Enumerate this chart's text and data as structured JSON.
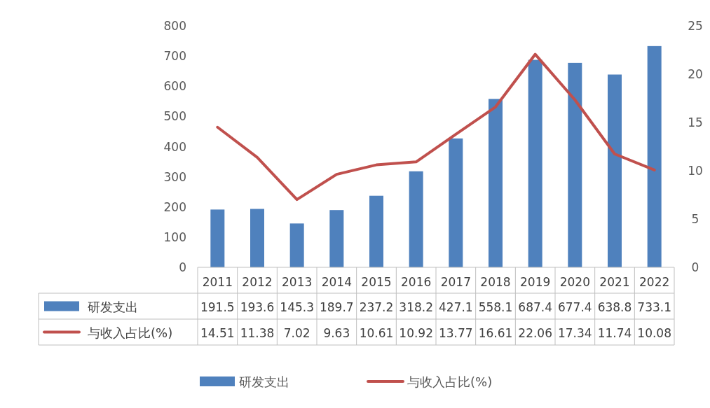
{
  "chart_data": {
    "type": "bar",
    "categories": [
      "2011",
      "2012",
      "2013",
      "2014",
      "2015",
      "2016",
      "2017",
      "2018",
      "2019",
      "2020",
      "2021",
      "2022"
    ],
    "series": [
      {
        "name": "研发支出",
        "color": "#4f81bd",
        "values": [
          191.5,
          193.6,
          145.3,
          189.7,
          237.2,
          318.2,
          427.1,
          558.1,
          687.4,
          677.4,
          638.8,
          733.1
        ]
      },
      {
        "name": "与收入占比(%)",
        "type": "line",
        "axis": "y2",
        "color": "#c0504d",
        "values": [
          14.51,
          11.38,
          7.02,
          9.63,
          10.61,
          10.92,
          13.77,
          16.61,
          22.06,
          17.34,
          11.74,
          10.08
        ]
      }
    ],
    "ylim": [
      0,
      800
    ],
    "yticks": [
      0,
      100,
      200,
      300,
      400,
      500,
      600,
      700,
      800
    ],
    "y2lim": [
      0,
      25
    ],
    "y2ticks": [
      0,
      5,
      10,
      15,
      20,
      25
    ],
    "data_labels": true,
    "legend": "bottom",
    "grid": false
  }
}
